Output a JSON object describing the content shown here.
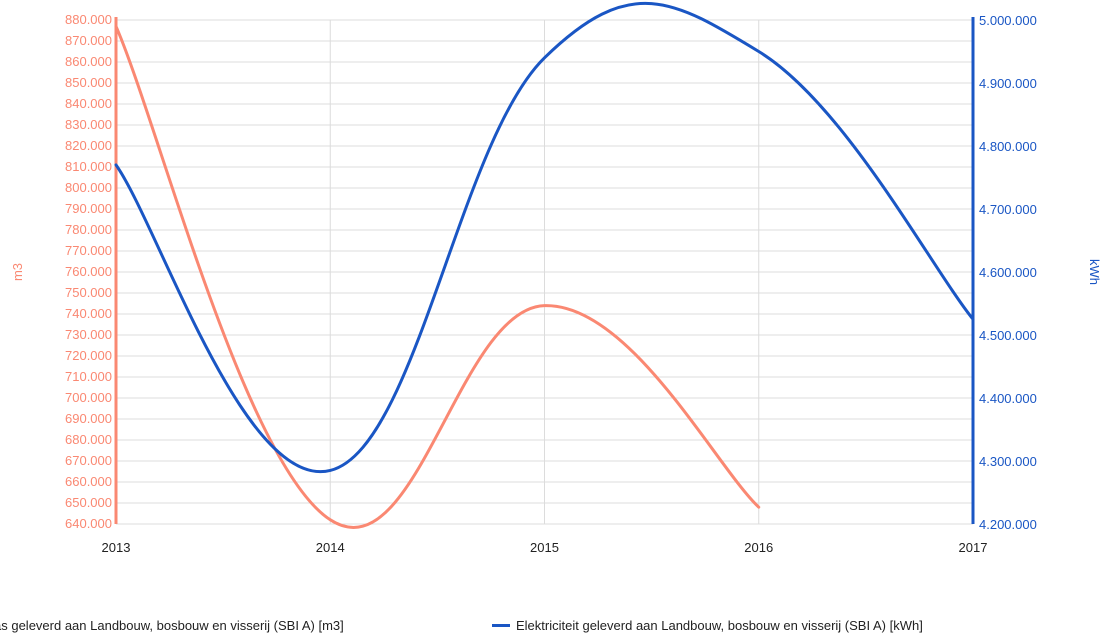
{
  "chart_data": {
    "type": "line",
    "x": [
      "2013",
      "2014",
      "2015",
      "2016",
      "2017"
    ],
    "series": [
      {
        "name": "as geleverd aan Landbouw, bosbouw en visserij (SBI A) [m3]",
        "axis": "left",
        "color": "#fa8872",
        "values": [
          877000,
          642000,
          744000,
          648000,
          null
        ]
      },
      {
        "name": "Elektriciteit geleverd aan Landbouw, bosbouw en visserij (SBI A) [kWh]",
        "axis": "right",
        "color": "#1a56c4",
        "values": [
          4770000,
          4285000,
          4940000,
          4950000,
          4525000
        ]
      }
    ],
    "y_left": {
      "label": "m3",
      "ylim": [
        640000,
        880000
      ],
      "ticks": [
        "880.000",
        "870.000",
        "860.000",
        "850.000",
        "840.000",
        "830.000",
        "820.000",
        "810.000",
        "800.000",
        "790.000",
        "780.000",
        "770.000",
        "760.000",
        "750.000",
        "740.000",
        "730.000",
        "720.000",
        "710.000",
        "700.000",
        "690.000",
        "680.000",
        "670.000",
        "660.000",
        "650.000",
        "640.000"
      ]
    },
    "y_right": {
      "label": "kWh",
      "ylim": [
        4200000,
        5000000
      ],
      "ticks": [
        "5.000.000",
        "4.900.000",
        "4.800.000",
        "4.700.000",
        "4.600.000",
        "4.500.000",
        "4.400.000",
        "4.300.000",
        "4.200.000"
      ]
    },
    "grid": true,
    "legend_position": "bottom"
  }
}
